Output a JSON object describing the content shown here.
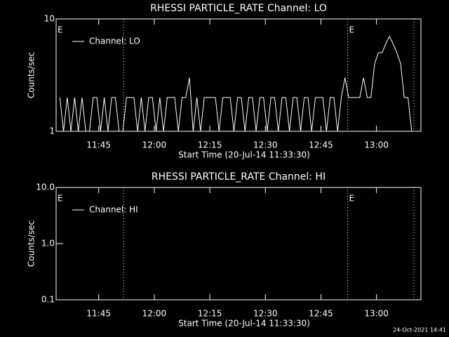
{
  "chart_data": [
    {
      "type": "line",
      "title": "RHESSI PARTICLE_RATE Channel: LO",
      "xlabel": "Start Time (20-Jul-14 11:33:30)",
      "ylabel": "Counts/sec",
      "log_y": true,
      "xlim": [
        0,
        98.5
      ],
      "ylim": [
        1,
        10
      ],
      "xticks": [
        {
          "value": 11.5,
          "label": "11:45"
        },
        {
          "value": 26.5,
          "label": "12:00"
        },
        {
          "value": 41.5,
          "label": "12:15"
        },
        {
          "value": 56.5,
          "label": "12:30"
        },
        {
          "value": 71.5,
          "label": "12:45"
        },
        {
          "value": 86.5,
          "label": "13:00"
        }
      ],
      "yticks": [
        1,
        10
      ],
      "event_lines": [
        18.2,
        78.7,
        96.6
      ],
      "annotations": [
        {
          "text": "E",
          "x": 0
        },
        {
          "text": "E",
          "x": 78.7
        }
      ],
      "x": [
        1,
        2,
        3,
        4,
        5,
        6,
        7,
        8,
        9,
        10,
        11,
        12,
        13,
        14,
        15,
        16,
        17,
        18,
        19,
        20,
        21,
        22,
        23,
        24,
        25,
        26,
        27,
        28,
        29,
        30,
        31,
        32,
        33,
        34,
        35,
        36,
        37,
        38,
        39,
        40,
        41,
        42,
        43,
        44,
        45,
        46,
        47,
        48,
        49,
        50,
        51,
        52,
        53,
        54,
        55,
        56,
        57,
        58,
        59,
        60,
        61,
        62,
        63,
        64,
        65,
        66,
        67,
        68,
        69,
        70,
        71,
        72,
        73,
        74,
        75,
        76,
        77,
        78,
        79,
        80,
        81,
        82,
        83,
        84,
        85,
        86,
        87,
        88,
        89,
        90,
        91,
        92,
        93,
        94,
        95,
        96
      ],
      "series": [
        {
          "name": "Channel: LO",
          "color": "#ffffff",
          "values": [
            2,
            1,
            2,
            1,
            2,
            1,
            2,
            1,
            1,
            2,
            2,
            1,
            2,
            1,
            2,
            2,
            1,
            1,
            2,
            2,
            2,
            1,
            2,
            1,
            2,
            2,
            1,
            2,
            1,
            2,
            2,
            2,
            1,
            2,
            2,
            3,
            1,
            2,
            1,
            2,
            2,
            2,
            2,
            1,
            2,
            2,
            2,
            1,
            2,
            2,
            1,
            2,
            2,
            1,
            2,
            2,
            1,
            2,
            2,
            1,
            2,
            2,
            1,
            2,
            2,
            1,
            2,
            2,
            1,
            2,
            2,
            2,
            1,
            2,
            2,
            1,
            2,
            3,
            2,
            2,
            2,
            2,
            3,
            2,
            2,
            4,
            5,
            5,
            6,
            7,
            6,
            5,
            4,
            2,
            2,
            1
          ]
        }
      ]
    },
    {
      "type": "line",
      "title": "RHESSI PARTICLE_RATE Channel: HI",
      "xlabel": "Start Time (20-Jul-14 11:33:30)",
      "ylabel": "Counts/sec",
      "log_y": true,
      "xlim": [
        0,
        98.5
      ],
      "ylim": [
        0.1,
        10
      ],
      "xticks": [
        {
          "value": 11.5,
          "label": "11:45"
        },
        {
          "value": 26.5,
          "label": "12:00"
        },
        {
          "value": 41.5,
          "label": "12:15"
        },
        {
          "value": 56.5,
          "label": "12:30"
        },
        {
          "value": 71.5,
          "label": "12:45"
        },
        {
          "value": 86.5,
          "label": "13:00"
        }
      ],
      "yticks": [
        0.1,
        {
          "value": 1,
          "label": "1.0"
        },
        {
          "value": 10,
          "label": "10.0"
        }
      ],
      "event_lines": [
        18.2,
        78.7,
        96.6
      ],
      "annotations": [
        {
          "text": "E",
          "x": 0
        },
        {
          "text": "E",
          "x": 78.7
        }
      ],
      "x": [],
      "series": [
        {
          "name": "Channel: HI",
          "color": "#ffffff",
          "values": []
        }
      ]
    }
  ],
  "footer": "24-Oct-2021 14:41"
}
